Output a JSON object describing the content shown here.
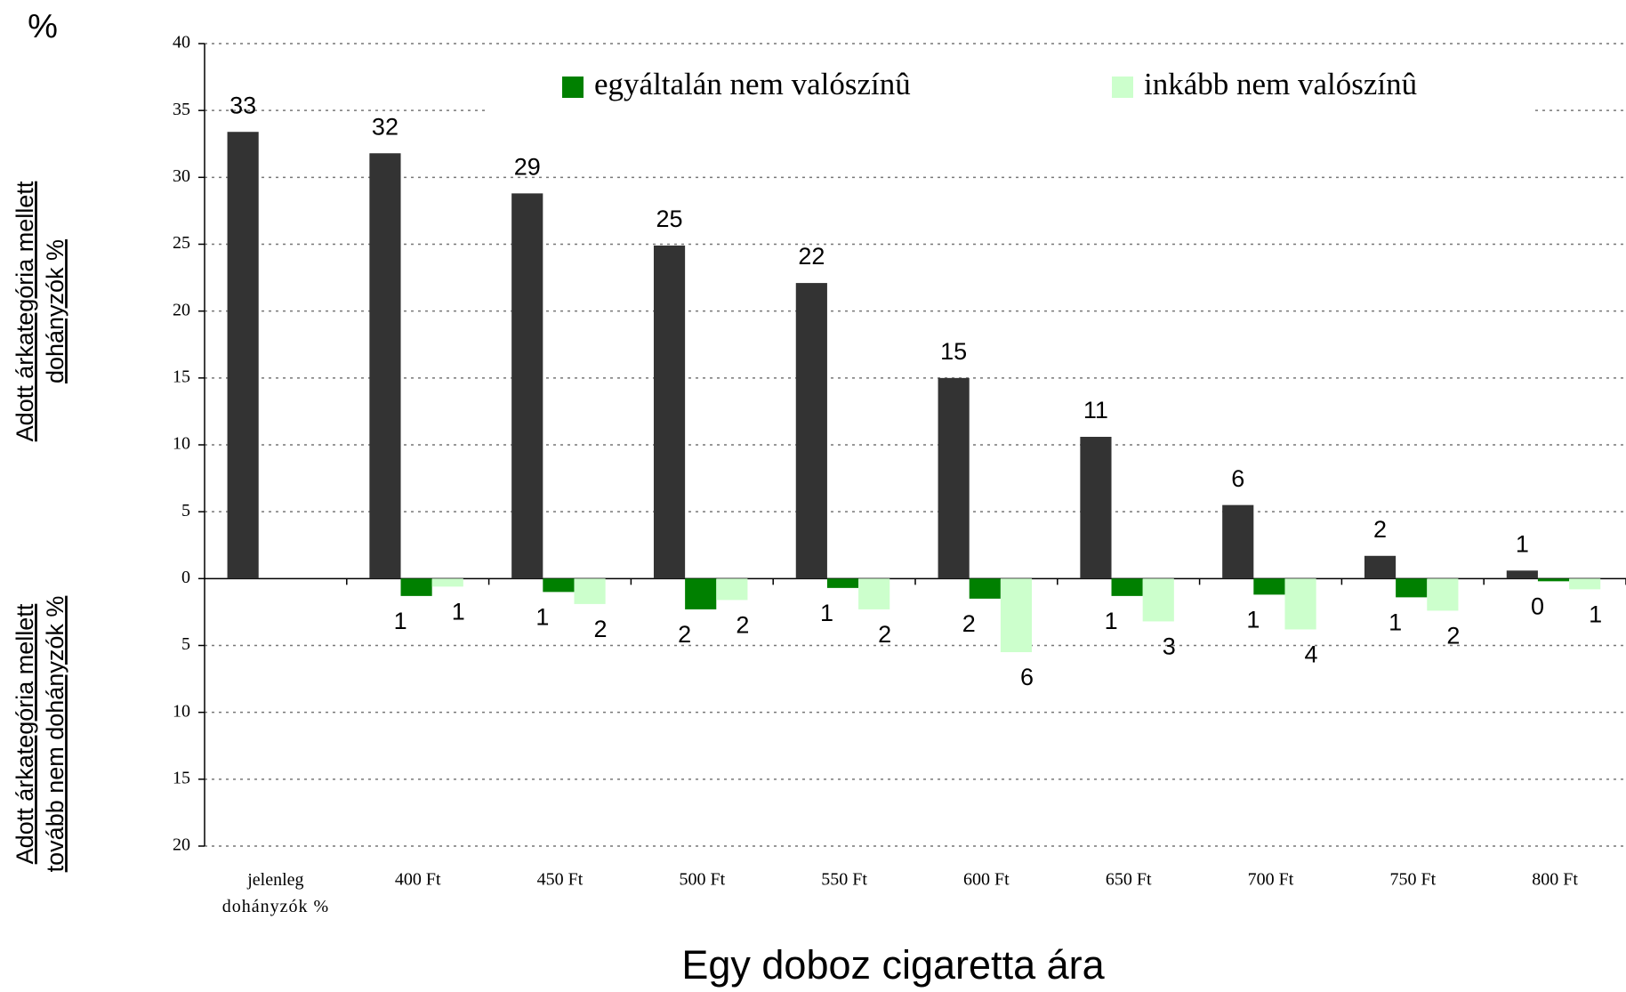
{
  "chart_data": {
    "type": "bar",
    "y_unit": "%",
    "y_label_upper": [
      "Adott árkategória mellett",
      "dohányzók %"
    ],
    "y_label_lower": [
      "Adott árkategória mellett",
      "tovább nem dohányzók  %"
    ],
    "x_label": "Egy doboz cigaretta ára",
    "categories": [
      "jelenleg dohányzók %",
      "400 Ft",
      "450 Ft",
      "500 Ft",
      "550 Ft",
      "600 Ft",
      "650 Ft",
      "700 Ft",
      "750 Ft",
      "800 Ft"
    ],
    "series": [
      {
        "color": "#333333",
        "values": [
          33.4,
          31.8,
          28.8,
          24.9,
          22.1,
          15.0,
          10.6,
          5.5,
          1.7,
          0.6
        ],
        "value_labels": [
          "33",
          "32",
          "29",
          "25",
          "22",
          "15",
          "11",
          "6",
          "2",
          "1"
        ]
      },
      {
        "name": "egyáltalán nem valószínû",
        "color": "#008000",
        "values": [
          null,
          -1.3,
          -1.0,
          -2.3,
          -0.7,
          -1.5,
          -1.3,
          -1.2,
          -1.4,
          -0.2
        ],
        "value_labels": [
          null,
          "1",
          "1",
          "2",
          "1",
          "2",
          "1",
          "1",
          "1",
          "0"
        ]
      },
      {
        "name": "inkább nem valószínû",
        "color": "#ccffcc",
        "values": [
          null,
          -0.6,
          -1.9,
          -1.6,
          -2.3,
          -5.5,
          -3.2,
          -3.8,
          -2.4,
          -0.8
        ],
        "value_labels": [
          null,
          "1",
          "2",
          "2",
          "2",
          "6",
          "3",
          "4",
          "2",
          "1"
        ]
      }
    ],
    "ylim": [
      -20,
      40
    ],
    "yticks": [
      {
        "value": -20,
        "label": "20"
      },
      {
        "value": -15,
        "label": "15"
      },
      {
        "value": -10,
        "label": "10"
      },
      {
        "value": -5,
        "label": "5"
      },
      0,
      5,
      10,
      15,
      20,
      25,
      30,
      35,
      40
    ],
    "grid": true,
    "legend": "top-right"
  }
}
